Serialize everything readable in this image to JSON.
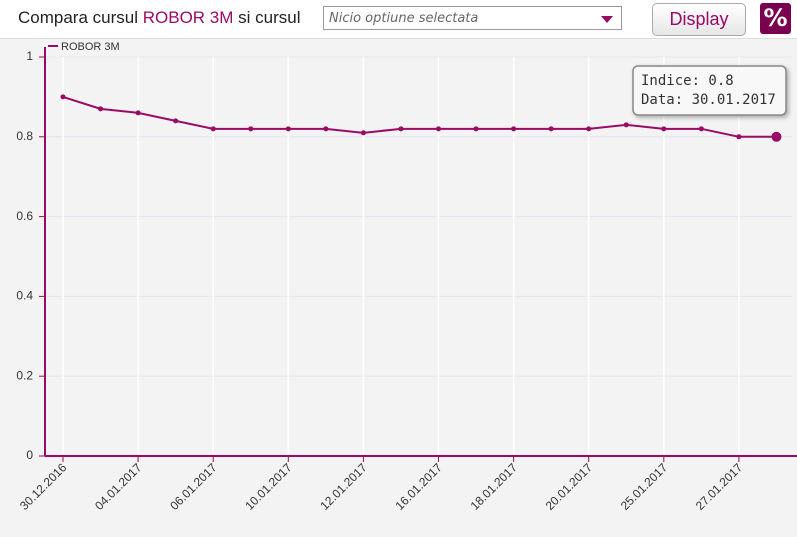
{
  "header": {
    "title_parts": [
      "Compara cursul",
      "ROBOR 3M",
      "si cursul"
    ],
    "select_placeholder": "Nicio optiune selectata",
    "button": "Display",
    "icon": "%"
  },
  "chart_data": {
    "type": "line",
    "categories": [
      "30.12.2016",
      null,
      "04.01.2017",
      null,
      "06.01.2017",
      null,
      "10.01.2017",
      null,
      "12.01.2017",
      null,
      "16.01.2017",
      null,
      "18.01.2017",
      null,
      "20.01.2017",
      null,
      "25.01.2017",
      null,
      "27.01.2017",
      null
    ],
    "series": [
      {
        "name": "ROBOR 3M",
        "color": "#9b0a64",
        "values": [
          0.9,
          0.87,
          0.86,
          0.84,
          0.82,
          0.82,
          0.82,
          0.82,
          0.81,
          0.82,
          0.82,
          0.82,
          0.82,
          0.82,
          0.82,
          0.83,
          0.82,
          0.82,
          0.8,
          0.8
        ]
      }
    ],
    "ylim": [
      0,
      1
    ],
    "yticks": [
      0,
      0.2,
      0.4,
      0.6,
      0.8,
      1
    ],
    "grid": true,
    "tooltip": [
      "Indice: 0.8",
      "Data: 30.01.2017"
    ]
  }
}
